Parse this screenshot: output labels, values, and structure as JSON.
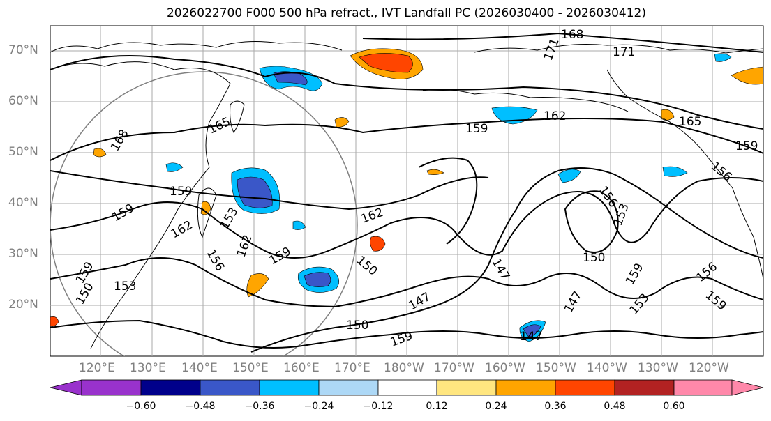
{
  "title": "2026022700 F000 500 hPa refract., IVT Landfall PC (2026030400 - 2026030412)",
  "lat_labels": [
    "70°N",
    "60°N",
    "50°N",
    "40°N",
    "30°N",
    "20°N"
  ],
  "lon_labels": [
    "120°E",
    "130°E",
    "140°E",
    "150°E",
    "160°E",
    "170°E",
    "180°W",
    "170°W",
    "160°W",
    "150°W",
    "140°W",
    "130°W",
    "120°W"
  ],
  "contour_labels": [
    "168",
    "171",
    "171",
    "165",
    "162",
    "159",
    "165",
    "168",
    "159",
    "159",
    "156",
    "156",
    "162",
    "159",
    "153",
    "162",
    "153",
    "159",
    "156",
    "162",
    "150",
    "147",
    "150",
    "159",
    "159",
    "153",
    "156",
    "150",
    "147",
    "159",
    "147",
    "153",
    "150",
    "147",
    "159"
  ],
  "colorbar": {
    "colors": [
      "#9932cc",
      "#00008b",
      "#3a57c8",
      "#00bfff",
      "#add8f6",
      "#ffffff",
      "#ffe680",
      "#ffa500",
      "#ff4500",
      "#b22222",
      "#ff88aa"
    ],
    "ticks": [
      "−0.60",
      "−0.48",
      "−0.36",
      "−0.24",
      "−0.12",
      "0.12",
      "0.24",
      "0.36",
      "0.48",
      "0.60"
    ]
  }
}
